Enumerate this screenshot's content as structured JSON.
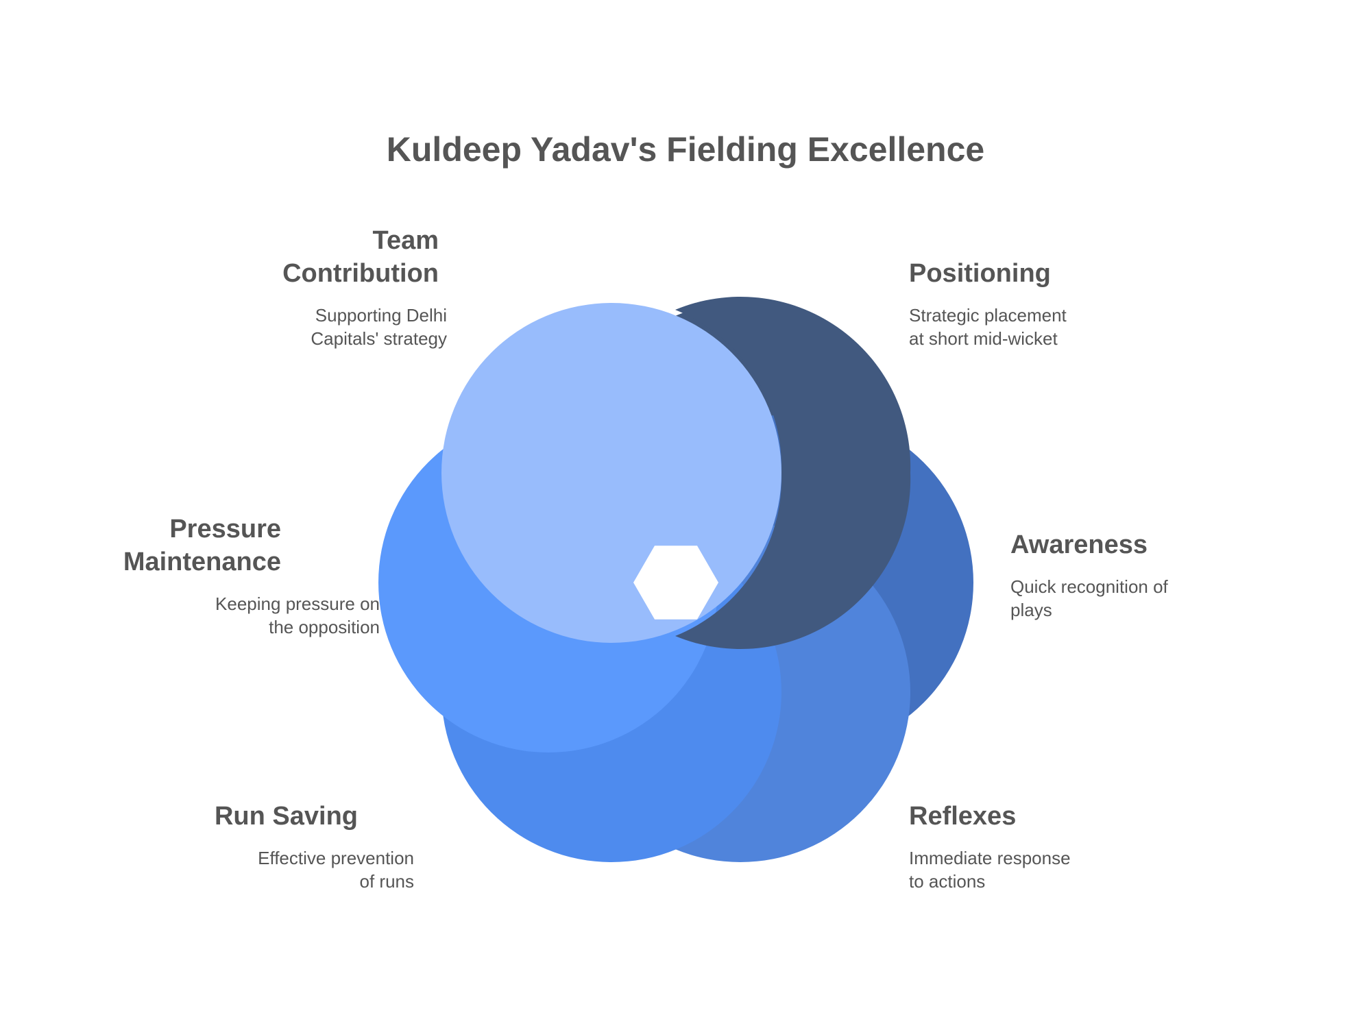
{
  "title": "Kuldeep Yadav's Fielding Excellence",
  "colors": {
    "team_contribution": "#98bcfc",
    "positioning": "#41597f",
    "awareness": "#4371c0",
    "reflexes": "#5084db",
    "run_saving": "#4e8bee",
    "pressure_maintenance": "#5b99fc",
    "text": "#555555"
  },
  "segments": [
    {
      "key": "team_contribution",
      "heading": "Team\nContribution",
      "description": "Supporting Delhi\nCapitals' strategy"
    },
    {
      "key": "positioning",
      "heading": "Positioning",
      "description": "Strategic placement\nat short mid-wicket"
    },
    {
      "key": "awareness",
      "heading": "Awareness",
      "description": "Quick recognition of\nplays"
    },
    {
      "key": "reflexes",
      "heading": "Reflexes",
      "description": "Immediate response\nto actions"
    },
    {
      "key": "run_saving",
      "heading": "Run Saving",
      "description": "Effective prevention\nof runs"
    },
    {
      "key": "pressure_maintenance",
      "heading": "Pressure\nMaintenance",
      "description": "Keeping pressure on\nthe opposition"
    }
  ]
}
